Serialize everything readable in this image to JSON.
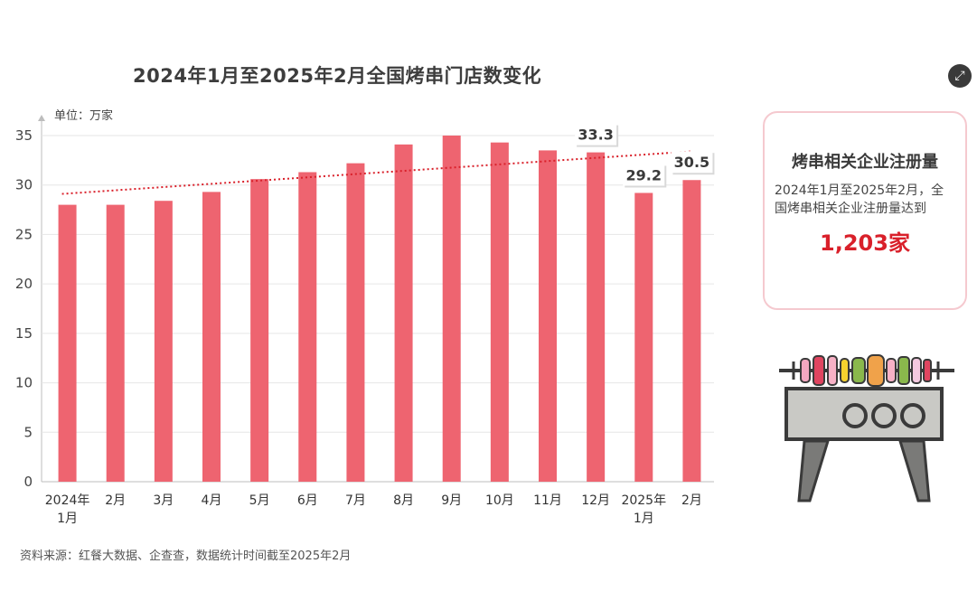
{
  "title": "2024年1月至2025年2月全国烤串门店数变化",
  "unit_label": "单位：万家",
  "source": "资料来源：红餐大数据、企查查，数据统计时间截至2025年2月",
  "chart_data": {
    "type": "bar",
    "title": "2024年1月至2025年2月全国烤串门店数变化",
    "ylabel": "单位：万家",
    "ylim": [
      0,
      35
    ],
    "yticks": [
      0,
      5,
      10,
      15,
      20,
      25,
      30,
      35
    ],
    "categories": [
      {
        "line1": "2024年",
        "line2": "1月"
      },
      {
        "line1": "2月",
        "line2": ""
      },
      {
        "line1": "3月",
        "line2": ""
      },
      {
        "line1": "4月",
        "line2": ""
      },
      {
        "line1": "5月",
        "line2": ""
      },
      {
        "line1": "6月",
        "line2": ""
      },
      {
        "line1": "7月",
        "line2": ""
      },
      {
        "line1": "8月",
        "line2": ""
      },
      {
        "line1": "9月",
        "line2": ""
      },
      {
        "line1": "10月",
        "line2": ""
      },
      {
        "line1": "11月",
        "line2": ""
      },
      {
        "line1": "12月",
        "line2": ""
      },
      {
        "line1": "2025年",
        "line2": "1月"
      },
      {
        "line1": "2月",
        "line2": ""
      }
    ],
    "values": [
      28.0,
      28.0,
      28.4,
      29.3,
      30.6,
      31.3,
      32.2,
      34.1,
      35.0,
      34.3,
      33.5,
      33.3,
      29.2,
      30.5
    ],
    "data_labels": [
      {
        "index": 11,
        "text": "33.3"
      },
      {
        "index": 12,
        "text": "29.2"
      },
      {
        "index": 13,
        "text": "30.5"
      }
    ],
    "trendline": {
      "style": "dotted",
      "start": 29.1,
      "end": 33.4
    },
    "bar_color": "#ee6470",
    "trend_color": "#d9202a",
    "grid": true
  },
  "info_card": {
    "title": "烤串相关企业注册量",
    "desc": "2024年1月至2025年2月，全国烤串相关企业注册量达到",
    "value": "1,203家",
    "value_color": "#d9202a"
  },
  "icons": {
    "expand": "expand-icon",
    "grill": "grill-skewer-icon"
  }
}
